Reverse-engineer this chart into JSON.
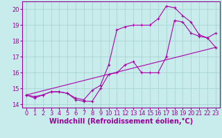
{
  "xlabel": "Windchill (Refroidissement éolien,°C)",
  "bg_color": "#c8ecec",
  "grid_color": "#aad4d4",
  "line_color": "#aa00aa",
  "xlim": [
    -0.5,
    23.5
  ],
  "ylim": [
    13.8,
    20.5
  ],
  "xticks": [
    0,
    1,
    2,
    3,
    4,
    5,
    6,
    7,
    8,
    9,
    10,
    11,
    12,
    13,
    14,
    15,
    16,
    17,
    18,
    19,
    20,
    21,
    22,
    23
  ],
  "yticks": [
    14,
    15,
    16,
    17,
    18,
    19,
    20
  ],
  "curve1_x": [
    0,
    1,
    2,
    3,
    4,
    5,
    6,
    7,
    8,
    9,
    10,
    11,
    12,
    13,
    14,
    15,
    16,
    17,
    18,
    19,
    20,
    21,
    22,
    23
  ],
  "curve1_y": [
    14.6,
    14.4,
    14.6,
    14.8,
    14.8,
    14.7,
    14.3,
    14.2,
    14.2,
    15.0,
    15.9,
    16.0,
    16.5,
    16.7,
    16.0,
    16.0,
    16.0,
    17.0,
    19.3,
    19.2,
    18.5,
    18.3,
    18.2,
    17.6
  ],
  "curve2_x": [
    0,
    1,
    2,
    3,
    4,
    5,
    6,
    7,
    8,
    9,
    10,
    11,
    12,
    13,
    14,
    15,
    16,
    17,
    18,
    19,
    20,
    21,
    22,
    23
  ],
  "curve2_y": [
    14.6,
    14.5,
    14.6,
    14.8,
    14.8,
    14.7,
    14.4,
    14.3,
    14.9,
    15.2,
    16.5,
    18.7,
    18.9,
    19.0,
    19.0,
    19.0,
    19.4,
    20.2,
    20.1,
    19.6,
    19.2,
    18.4,
    18.2,
    18.5
  ],
  "curve3_x": [
    0,
    23
  ],
  "curve3_y": [
    14.6,
    17.6
  ],
  "font_color": "#990099",
  "font_size_tick": 6,
  "font_size_label": 7
}
